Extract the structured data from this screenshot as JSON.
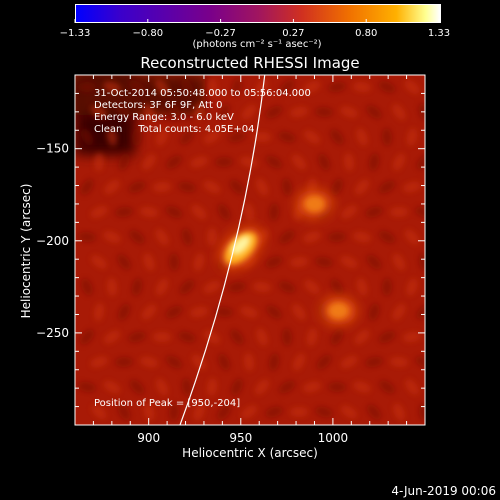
{
  "chart_data": {
    "type": "heatmap",
    "title": "Reconstructed RHESSI Image",
    "xlabel": "Heliocentric X (arcsec)",
    "ylabel": "Heliocentric Y (arcsec)",
    "xlim": [
      860,
      1050
    ],
    "ylim": [
      -300,
      -110
    ],
    "xticks": [
      900,
      950,
      1000
    ],
    "yticks": [
      -150,
      -200,
      -250
    ],
    "colorbar": {
      "label": "(photons cm⁻² s⁻¹ asec⁻²)",
      "range": [
        -1.33,
        1.33
      ],
      "ticks": [
        "-1.33",
        "-0.80",
        "-0.27",
        "0.27",
        "0.80",
        "1.33"
      ]
    },
    "annotations": {
      "time_range": "31-Oct-2014 05:50:48.000 to 05:56:04.000",
      "detectors": "Detectors: 3F 6F 9F, Att 0",
      "energy": "Energy Range: 3.0 - 6.0 keV",
      "method_counts": "Clean     Total counts: 4.05E+04",
      "peak": "Position of Peak = [950,-204]"
    },
    "sources": [
      {
        "x": 950,
        "y": -204,
        "intensity": 1.33
      },
      {
        "x": 990,
        "y": -180,
        "intensity": 0.55
      },
      {
        "x": 1003,
        "y": -238,
        "intensity": 0.6
      }
    ],
    "limb": true,
    "footer_date": "4-Jun-2019 00:06"
  }
}
